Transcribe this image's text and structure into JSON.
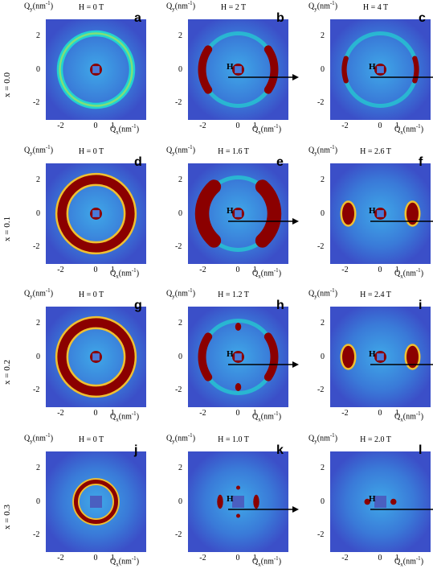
{
  "figure": {
    "rows": [
      {
        "row_label": "x = 0.0",
        "panels": [
          {
            "letter": "a",
            "field": "H = 0 T",
            "pattern": "ring-thin",
            "arrow": false
          },
          {
            "letter": "b",
            "field": "H = 2 T",
            "pattern": "arcs",
            "arrow": true
          },
          {
            "letter": "c",
            "field": "H = 4 T",
            "pattern": "arcs-narrow",
            "arrow": true
          }
        ]
      },
      {
        "row_label": "x = 0.1",
        "panels": [
          {
            "letter": "d",
            "field": "H = 0 T",
            "pattern": "ring-thick",
            "arrow": false
          },
          {
            "letter": "e",
            "field": "H = 1.6 T",
            "pattern": "arcs-wide",
            "arrow": true
          },
          {
            "letter": "f",
            "field": "H = 2.6 T",
            "pattern": "spots",
            "arrow": true
          }
        ]
      },
      {
        "row_label": "x = 0.2",
        "panels": [
          {
            "letter": "g",
            "field": "H = 0 T",
            "pattern": "ring-thick",
            "arrow": false
          },
          {
            "letter": "h",
            "field": "H = 1.2 T",
            "pattern": "arcs-dots",
            "arrow": true
          },
          {
            "letter": "i",
            "field": "H = 2.4 T",
            "pattern": "spots",
            "arrow": true
          }
        ]
      },
      {
        "row_label": "x = 0.3",
        "panels": [
          {
            "letter": "j",
            "field": "H = 0 T",
            "pattern": "ring-small",
            "arrow": false
          },
          {
            "letter": "k",
            "field": "H = 1.0 T",
            "pattern": "small-arcs-dots",
            "arrow": true
          },
          {
            "letter": "l",
            "field": "H = 2.0 T",
            "pattern": "small-spots",
            "arrow": true
          }
        ]
      }
    ],
    "qy_label": "Q",
    "qy_sub": "y",
    "qy_unit": "(nm",
    "qy_exp": "-1",
    "qy_close": ")",
    "qx_label": "Q",
    "qx_sub": "x",
    "qx_unit": "(nm",
    "qx_exp": "-1",
    "qx_close": ")",
    "x_ticks": [
      "-2",
      "0",
      "1"
    ],
    "y_ticks": [
      "2",
      "0",
      "-2"
    ],
    "arrow_label": "H",
    "colors": {
      "background": "#3b4fc8",
      "ring": "#8b0000",
      "halo": "#22d3d0"
    }
  }
}
